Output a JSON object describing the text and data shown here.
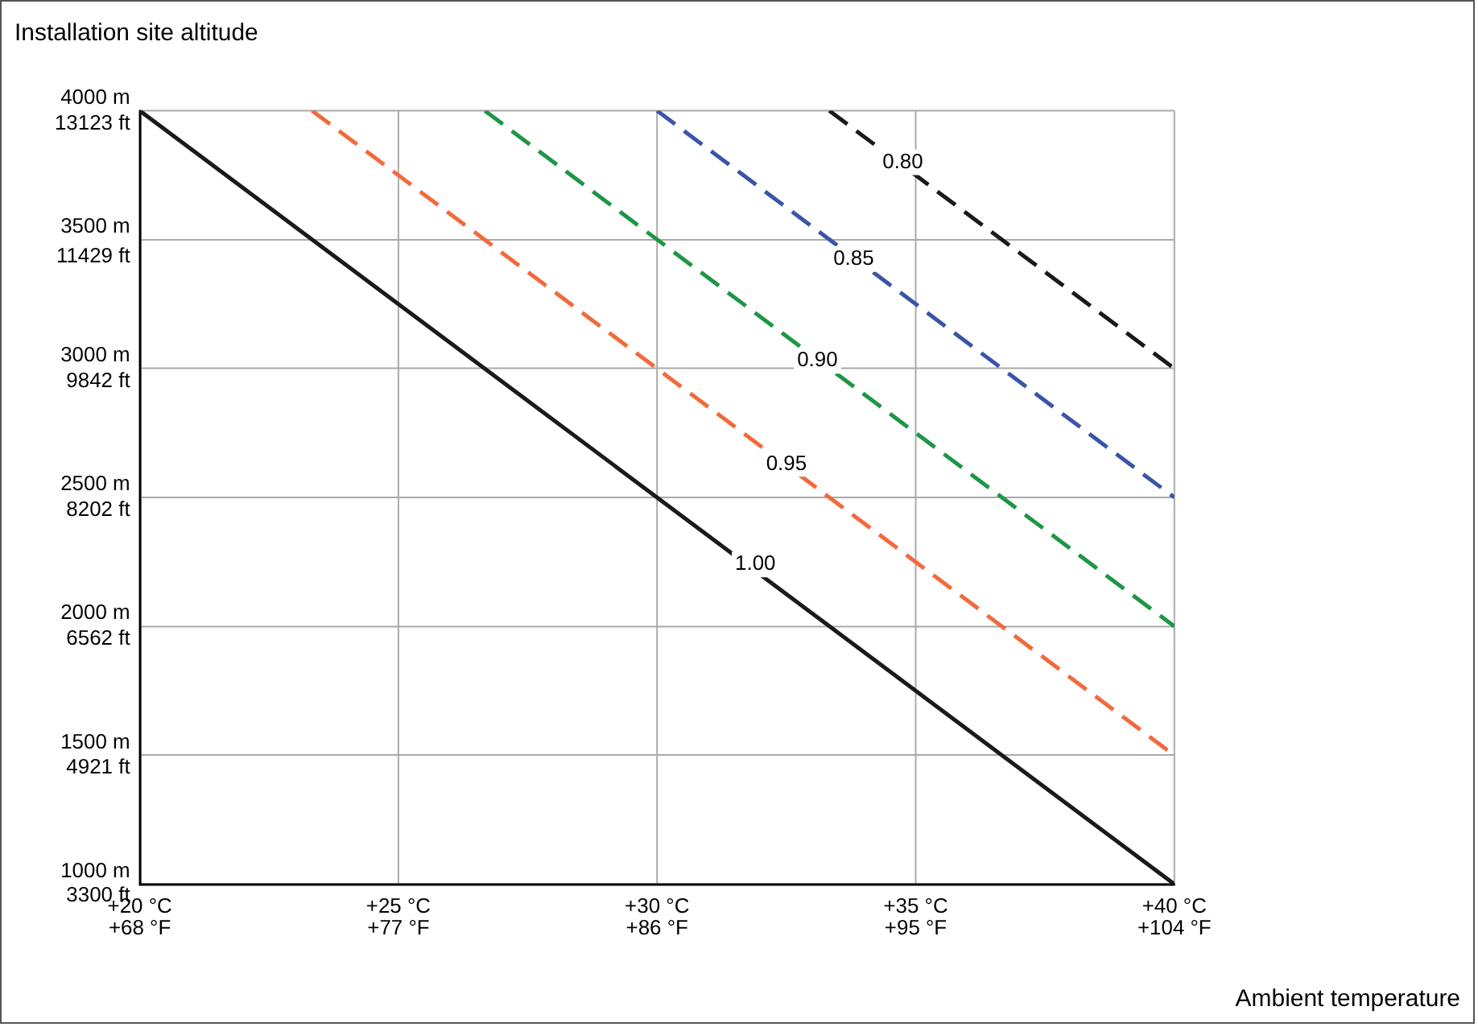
{
  "chart_data": {
    "type": "line",
    "title": "Installation site altitude",
    "xlabel": "Ambient temperature",
    "xlim": [
      20,
      40
    ],
    "ylim": [
      1000,
      4000
    ],
    "x2lim": [
      68,
      104
    ],
    "y2lim": [
      3281,
      13123
    ],
    "xticks": [
      {
        "value": 20,
        "label": "+20 °C"
      },
      {
        "value": 25,
        "label": "+25 °C"
      },
      {
        "value": 30,
        "label": "+30 °C"
      },
      {
        "value": 35,
        "label": "+35 °C"
      },
      {
        "value": 40,
        "label": "+40 °C"
      }
    ],
    "x2ticks": [
      {
        "value": 68,
        "label": "+68 °F"
      },
      {
        "value": 77,
        "label": "+77 °F"
      },
      {
        "value": 86,
        "label": "+86 °F"
      },
      {
        "value": 95,
        "label": "+95 °F"
      },
      {
        "value": 104,
        "label": "+104 °F"
      }
    ],
    "yticks": [
      {
        "value": 1000,
        "label": "1000 m"
      },
      {
        "value": 1500,
        "label": "1500 m"
      },
      {
        "value": 2000,
        "label": "2000 m"
      },
      {
        "value": 2500,
        "label": "2500 m"
      },
      {
        "value": 3000,
        "label": "3000 m"
      },
      {
        "value": 3500,
        "label": "3500 m"
      },
      {
        "value": 4000,
        "label": "4000 m"
      }
    ],
    "y2ticks": [
      {
        "value": 3300,
        "label": "3300 ft"
      },
      {
        "value": 4921,
        "label": "4921 ft"
      },
      {
        "value": 6562,
        "label": "6562 ft"
      },
      {
        "value": 8202,
        "label": "8202 ft"
      },
      {
        "value": 9842,
        "label": "9842 ft"
      },
      {
        "value": 11429,
        "label": "11429 ft"
      },
      {
        "value": 13123,
        "label": "13123 ft"
      }
    ],
    "grid": true,
    "legend": false,
    "marker": "none",
    "series": [
      {
        "color": "#1a1a1a",
        "line_style": "solid",
        "x": [
          20,
          40
        ],
        "values": [
          4000,
          1000
        ]
      },
      {
        "color": "#f26a3c",
        "line_style": "dashed",
        "x": [
          23.33,
          40
        ],
        "values": [
          4000,
          1500
        ]
      },
      {
        "color": "#1e9645",
        "line_style": "dashed",
        "x": [
          26.67,
          40
        ],
        "values": [
          4000,
          2000
        ]
      },
      {
        "color": "#3a55a8",
        "line_style": "dashed",
        "x": [
          30,
          40
        ],
        "values": [
          4000,
          2500
        ]
      },
      {
        "color": "#1a1a1a",
        "line_style": "dashed",
        "x": [
          33.33,
          40
        ],
        "values": [
          4000,
          3000
        ]
      }
    ],
    "annotations": [
      {
        "text": "0.80",
        "x": 34.75,
        "y": 3800
      },
      {
        "text": "0.85",
        "x": 33.8,
        "y": 3425
      },
      {
        "text": "0.90",
        "x": 33.1,
        "y": 3030
      },
      {
        "text": "0.95",
        "x": 32.5,
        "y": 2630
      },
      {
        "text": "1.00",
        "x": 31.9,
        "y": 2240
      }
    ]
  }
}
